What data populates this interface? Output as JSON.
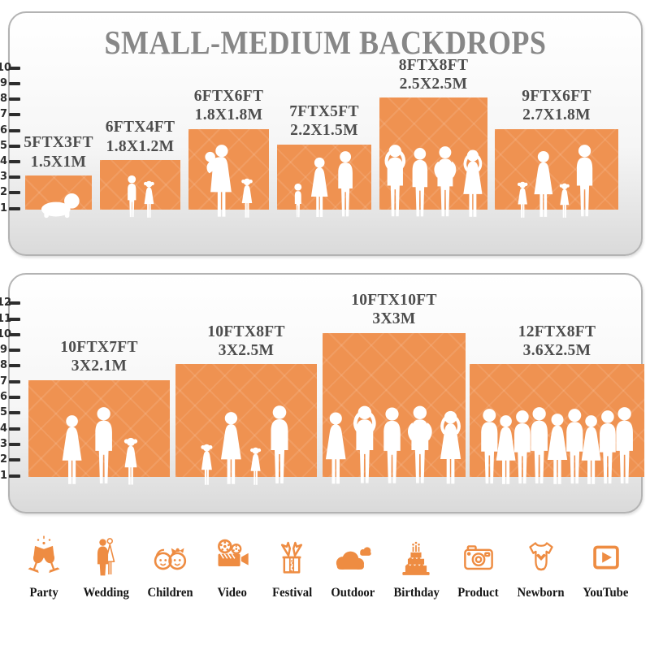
{
  "page": {
    "title": "SMALL-MEDIUM BACKDROPS"
  },
  "colors": {
    "bar_orange": "#EF9251",
    "icon_orange": "#EE8C42",
    "title_gray": "#878787",
    "label_gray": "#4D4D4D",
    "tick_dark": "#2D2D2D"
  },
  "chart_data": [
    {
      "type": "bar",
      "panel": "small-medium-backdrops-upper",
      "title": "SMALL-MEDIUM BACKDROPS",
      "ylim": [
        1,
        10
      ],
      "ruler_ticks": [
        1,
        2,
        3,
        4,
        5,
        6,
        7,
        8,
        9,
        10
      ],
      "categories": [
        "5FTX3FT",
        "6FTX4FT",
        "6FTX6FT",
        "7FTX5FT",
        "8FTX8FT",
        "9FTX6FT"
      ],
      "metric_labels": [
        "1.5X1M",
        "1.8X1.2M",
        "1.8X1.8M",
        "2.2X1.5M",
        "2.5X2.5M",
        "2.7X1.8M"
      ],
      "heights_ft": [
        3,
        4,
        6,
        5,
        8,
        6
      ],
      "widths_ft": [
        5,
        6,
        6,
        7,
        8,
        9
      ],
      "figures": [
        [
          "baby"
        ],
        [
          "boy",
          "girl"
        ],
        [
          "mother-baby",
          "girl"
        ],
        [
          "toddler",
          "woman",
          "man"
        ],
        [
          "man-arms-up",
          "man",
          "man-hands-hips",
          "woman-arms-up"
        ],
        [
          "girl",
          "woman",
          "girl",
          "man"
        ]
      ]
    },
    {
      "type": "bar",
      "panel": "small-medium-backdrops-lower",
      "ylim": [
        1,
        12
      ],
      "ruler_ticks": [
        1,
        2,
        3,
        4,
        5,
        6,
        7,
        8,
        9,
        10,
        11,
        12
      ],
      "categories": [
        "10FTX7FT",
        "10FTX8FT",
        "10FTX10FT",
        "12FTX8FT"
      ],
      "metric_labels": [
        "3X2.1M",
        "3X2.5M",
        "3X3M",
        "3.6X2.5M"
      ],
      "heights_ft": [
        7,
        8,
        10,
        8
      ],
      "widths_ft": [
        10,
        10,
        10,
        12
      ],
      "figures": [
        [
          "woman",
          "man",
          "girl"
        ],
        [
          "girl",
          "woman",
          "girl",
          "man"
        ],
        [
          "woman",
          "man-arms-up",
          "man",
          "man-hands-hips",
          "woman-arms-up"
        ],
        [
          "man",
          "woman",
          "man",
          "man",
          "woman",
          "man",
          "woman",
          "man",
          "man"
        ]
      ]
    }
  ],
  "categories_row": [
    {
      "icon": "party-icon",
      "label": "Party"
    },
    {
      "icon": "wedding-icon",
      "label": "Wedding"
    },
    {
      "icon": "children-icon",
      "label": "Children"
    },
    {
      "icon": "video-icon",
      "label": "Video"
    },
    {
      "icon": "festival-icon",
      "label": "Festival"
    },
    {
      "icon": "outdoor-icon",
      "label": "Outdoor"
    },
    {
      "icon": "birthday-icon",
      "label": "Birthday"
    },
    {
      "icon": "product-icon",
      "label": "Product"
    },
    {
      "icon": "newborn-icon",
      "label": "Newborn"
    },
    {
      "icon": "youtube-icon",
      "label": "YouTube"
    }
  ]
}
